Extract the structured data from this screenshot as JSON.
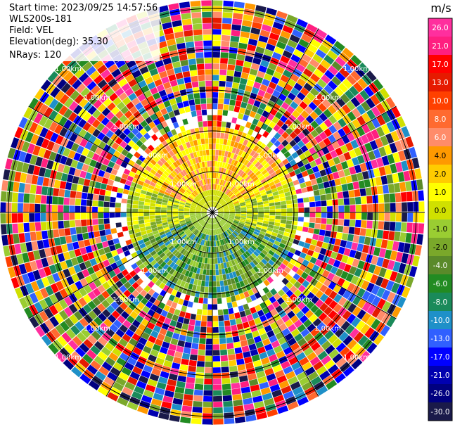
{
  "info": {
    "start_time": "Start time: 2023/09/25 14:57:56",
    "station": "WLS200s-181",
    "field": "Field: VEL",
    "elevation": "Elevation(deg): 35.30",
    "nrays": "NRays: 120"
  },
  "ring_label": "1.00km",
  "colorbar": {
    "unit": "m/s",
    "ticks": [
      "26.0",
      "21.0",
      "17.0",
      "13.0",
      "10.0",
      "8.0",
      "6.0",
      "4.0",
      "2.0",
      "1.0",
      "0.0",
      "-1.0",
      "-2.0",
      "-4.0",
      "-6.0",
      "-8.0",
      "-10.0",
      "-13.0",
      "-17.0",
      "-21.0",
      "-26.0",
      "-30.0"
    ],
    "colors": [
      "#ff2f9e",
      "#ff1f80",
      "#ff0000",
      "#e61a00",
      "#ff4000",
      "#ff6a30",
      "#ff8c6a",
      "#ff9900",
      "#ffcc00",
      "#ffff00",
      "#d0e000",
      "#9acd32",
      "#7aa82a",
      "#5a8a2a",
      "#228b22",
      "#1a8a5a",
      "#1e90c8",
      "#3060ff",
      "#0000ff",
      "#0000b0",
      "#000080",
      "#1a1a4a"
    ]
  },
  "chart_data": {
    "type": "ppi",
    "field": "VEL",
    "units": "m/s",
    "nrays": 120,
    "range_ring_spacing_km": 1.0
  }
}
